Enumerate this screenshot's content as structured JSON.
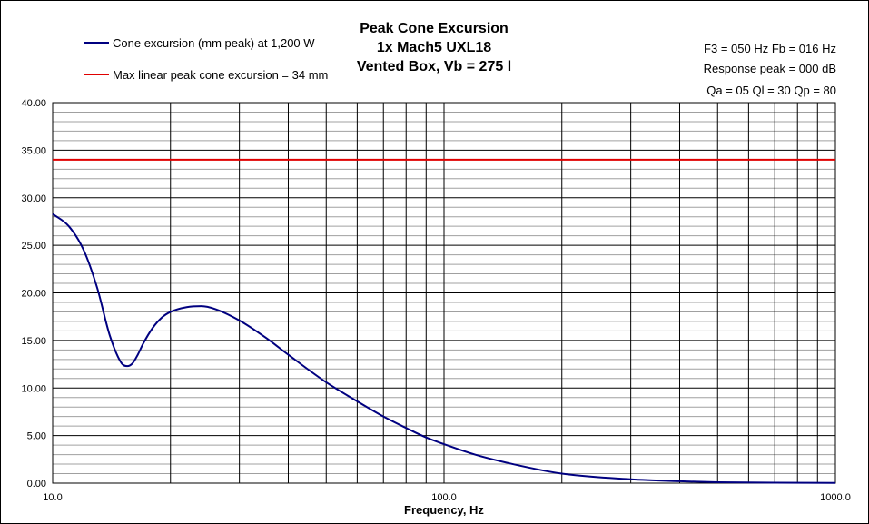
{
  "chart_data": {
    "type": "line",
    "title": [
      "Peak Cone Excursion",
      "1x Mach5 UXL18",
      "Vented Box, Vb = 275 l"
    ],
    "annotations": [
      "F3 = 050 Hz  Fb = 016 Hz",
      "Response peak = 000 dB",
      "Qa = 05  Ql = 30  Qp = 80"
    ],
    "xlabel": "Frequency, Hz",
    "ylabel": "",
    "x_scale": "log",
    "xlim": [
      10,
      1000
    ],
    "ylim": [
      0,
      40
    ],
    "grid": true,
    "legend_position": "top-left",
    "x_tick_labels": [
      "10.0",
      "100.0",
      "1000.0"
    ],
    "y_tick_labels": [
      "0.00",
      "5.00",
      "10.00",
      "15.00",
      "20.00",
      "25.00",
      "30.00",
      "35.00",
      "40.00"
    ],
    "series": [
      {
        "name": "Cone excursion (mm peak) at 1,200 W",
        "color": "#000080",
        "x": [
          10,
          11,
          12,
          13,
          14,
          15,
          15.5,
          16,
          16.5,
          17,
          18,
          19,
          20,
          22,
          24,
          26,
          30,
          35,
          40,
          50,
          60,
          70,
          80,
          90,
          100,
          120,
          150,
          200,
          300,
          400,
          500,
          700,
          1000
        ],
        "y": [
          28.3,
          27.0,
          24.5,
          20.5,
          15.5,
          12.6,
          12.3,
          12.6,
          13.5,
          14.6,
          16.3,
          17.4,
          18.0,
          18.5,
          18.6,
          18.3,
          17.1,
          15.3,
          13.5,
          10.6,
          8.6,
          7.0,
          5.8,
          4.8,
          4.1,
          3.0,
          2.0,
          1.0,
          0.4,
          0.2,
          0.1,
          0.05,
          0.02
        ]
      },
      {
        "name": "Max linear peak cone excursion = 34 mm",
        "color": "#e00000",
        "x": [
          10,
          1000
        ],
        "y": [
          34,
          34
        ]
      }
    ]
  }
}
